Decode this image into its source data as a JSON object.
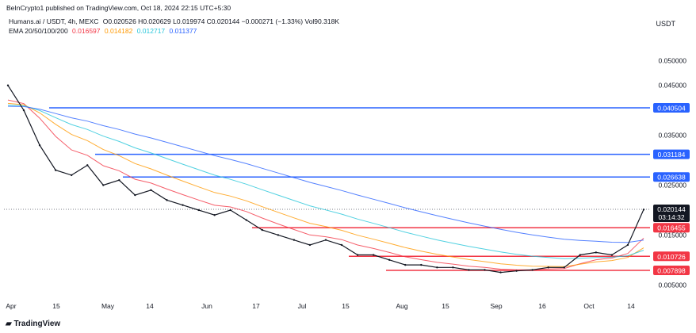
{
  "header": {
    "publisher": "BeInCrypto1 published on TradingView.com, Oct 18, 2024 22:15 UTC+5:30"
  },
  "legend": {
    "symbol": "Humans.ai / USDT, 4h, MEXC",
    "ohlc": "O0.020526 H0.020629 L0.019974 C0.020144 −0.000271 (−1.33%) Vol90.318K",
    "ema_title": "EMA 20/50/100/200",
    "ema_values": [
      "0.016597",
      "0.014182",
      "0.012717",
      "0.011377"
    ],
    "ema_colors": [
      "#f23645",
      "#ff9800",
      "#26c6da",
      "#2962ff"
    ]
  },
  "currency": "USDT",
  "footer": {
    "brand": "TradingView"
  },
  "colors": {
    "resistance": "#2962ff",
    "support": "#f23645",
    "price": "#131722",
    "current_label_bg": "#131722"
  },
  "chart_data": {
    "type": "line",
    "title": "",
    "xlabel": "",
    "ylabel": "",
    "x_ticks": [
      "Apr",
      "15",
      "May",
      "14",
      "Jun",
      "17",
      "Jul",
      "15",
      "Aug",
      "15",
      "Sep",
      "16",
      "Oct",
      "14"
    ],
    "y_ticks": [
      "0.050000",
      "0.045000",
      "0.035000",
      "0.025000",
      "0.015000",
      "0.005000"
    ],
    "ylim": [
      0.0025,
      0.0545
    ],
    "price_series": {
      "x_index": [
        0,
        1,
        2,
        3,
        4,
        5,
        6,
        7,
        8,
        9,
        10,
        11,
        12,
        13,
        14,
        15,
        16,
        17,
        18,
        19,
        20,
        21,
        22,
        23,
        24,
        25,
        26,
        27,
        28,
        29,
        30,
        31,
        32,
        33,
        34,
        35,
        36,
        37,
        38,
        39,
        40
      ],
      "values": [
        0.045,
        0.04,
        0.033,
        0.028,
        0.027,
        0.029,
        0.025,
        0.026,
        0.023,
        0.024,
        0.022,
        0.021,
        0.02,
        0.019,
        0.02,
        0.018,
        0.016,
        0.015,
        0.014,
        0.013,
        0.014,
        0.013,
        0.011,
        0.011,
        0.01,
        0.009,
        0.009,
        0.0085,
        0.0085,
        0.008,
        0.008,
        0.0075,
        0.0078,
        0.008,
        0.0085,
        0.0085,
        0.011,
        0.0115,
        0.011,
        0.013,
        0.0201
      ]
    },
    "horizontal_levels": [
      {
        "value": 0.040504,
        "label": "0.040504",
        "kind": "resistance"
      },
      {
        "value": 0.031184,
        "label": "0.031184",
        "kind": "resistance"
      },
      {
        "value": 0.026638,
        "label": "0.026638",
        "kind": "resistance"
      },
      {
        "value": 0.016455,
        "label": "0.016455",
        "kind": "support"
      },
      {
        "value": 0.010726,
        "label": "0.010726",
        "kind": "support"
      },
      {
        "value": 0.007898,
        "label": "0.007898",
        "kind": "support"
      }
    ],
    "current_price": {
      "value": 0.020144,
      "label": "0.020144",
      "countdown": "03:14:32"
    },
    "grid": false,
    "legend_placement": "top-left"
  }
}
